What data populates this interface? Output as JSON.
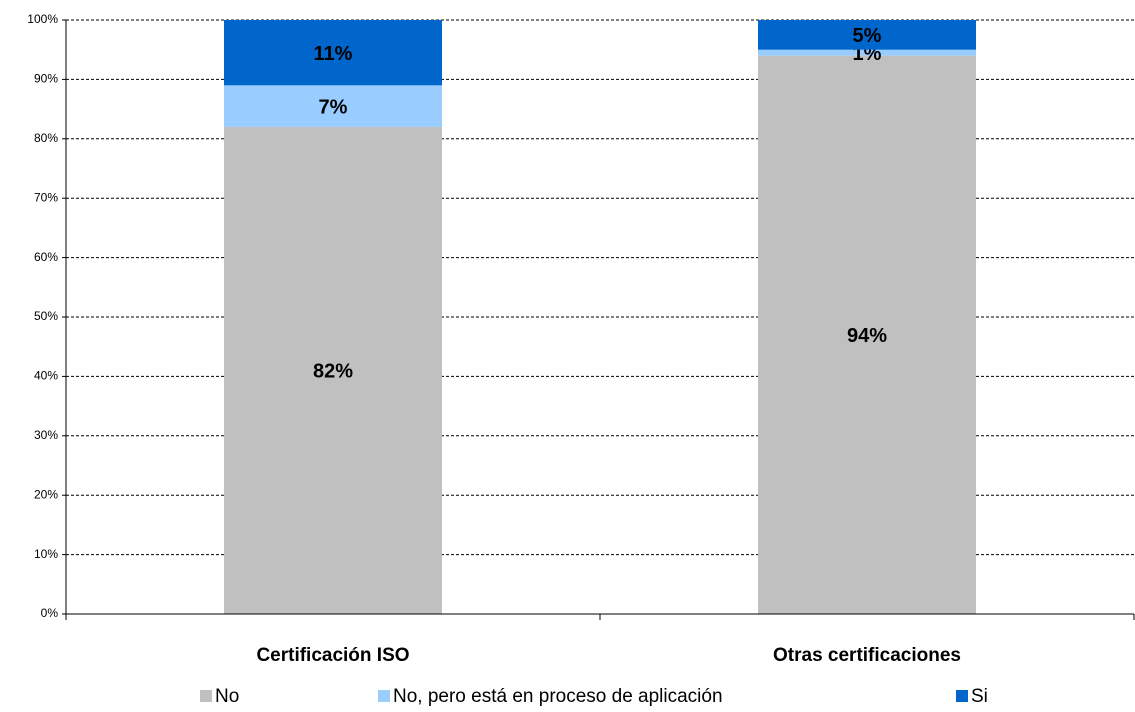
{
  "chart_data": {
    "type": "stacked_bar",
    "categories": [
      "Certificación ISO",
      "Otras certificaciones"
    ],
    "series": [
      {
        "name": "No",
        "color": "#c0c0c0",
        "values": [
          82,
          94
        ],
        "value_labels": [
          "82%",
          "94%"
        ]
      },
      {
        "name": "No, pero está en proceso de aplicación",
        "color": "#99ccff",
        "values": [
          7,
          1
        ],
        "value_labels": [
          "7%",
          "1%"
        ]
      },
      {
        "name": "Si",
        "color": "#0066cc",
        "values": [
          11,
          5
        ],
        "value_labels": [
          "11%",
          "5%"
        ]
      }
    ],
    "ylim": [
      0,
      100
    ],
    "yticks": [
      {
        "value": 0,
        "label": "0%"
      },
      {
        "value": 10,
        "label": "10%"
      },
      {
        "value": 20,
        "label": "20%"
      },
      {
        "value": 30,
        "label": "30%"
      },
      {
        "value": 40,
        "label": "40%"
      },
      {
        "value": 50,
        "label": "50%"
      },
      {
        "value": 60,
        "label": "60%"
      },
      {
        "value": 70,
        "label": "70%"
      },
      {
        "value": 80,
        "label": "80%"
      },
      {
        "value": 90,
        "label": "90%"
      },
      {
        "value": 100,
        "label": "100%"
      }
    ],
    "grid": true,
    "legend": "bottom"
  }
}
